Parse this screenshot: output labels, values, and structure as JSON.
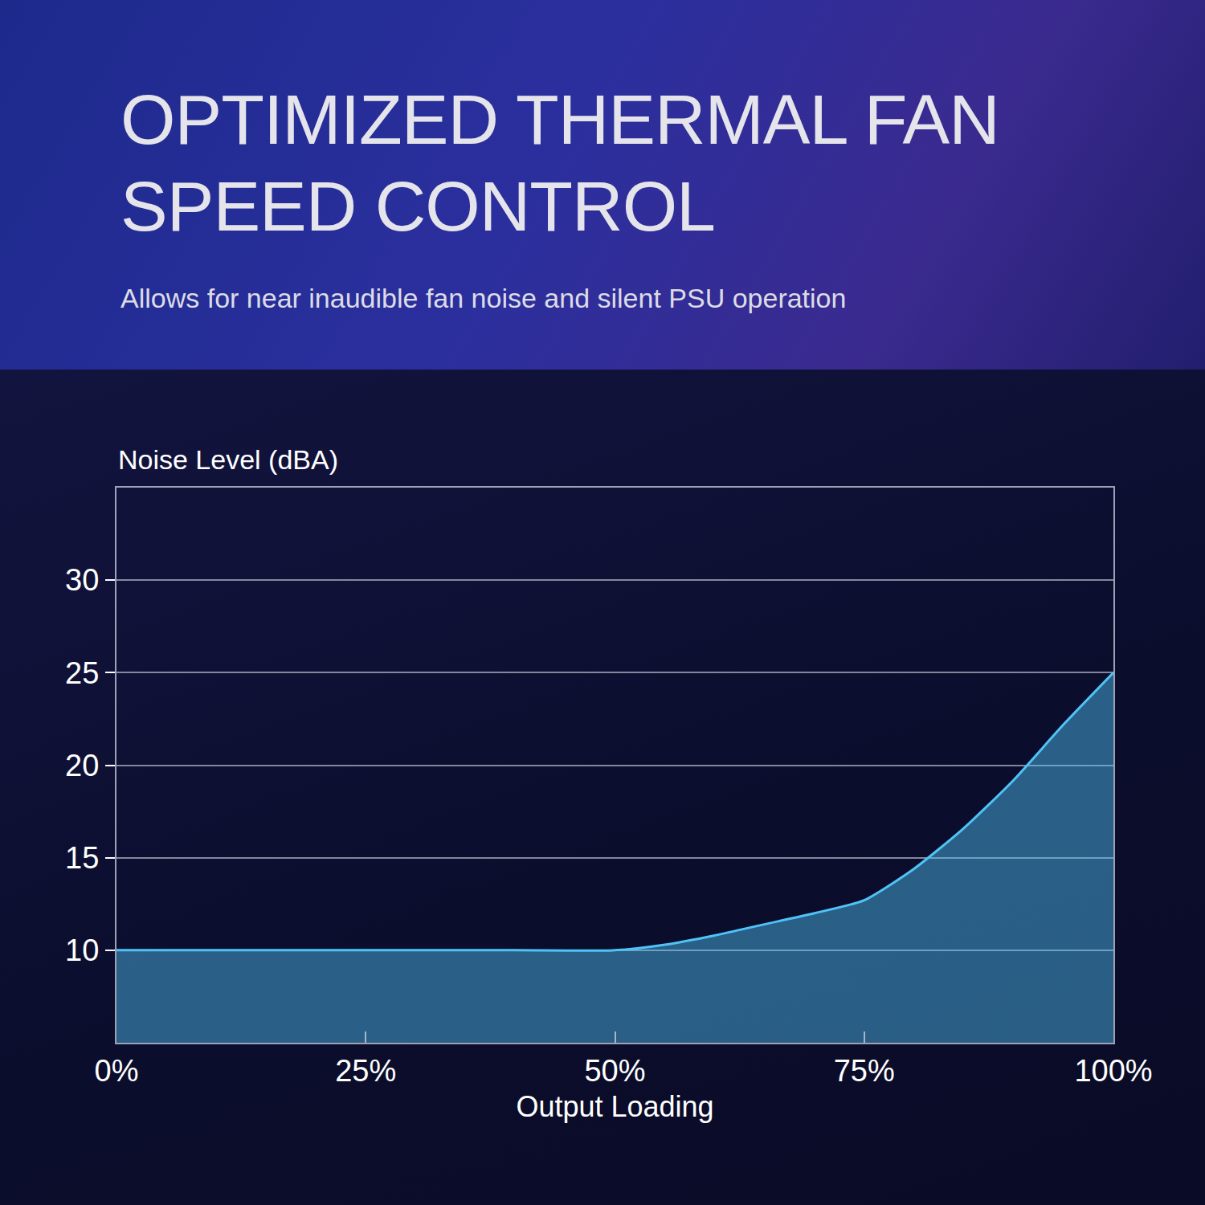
{
  "chart_data": {
    "type": "area",
    "title": "OPTIMIZED THERMAL FAN SPEED CONTROL",
    "subtitle": "Allows for near inaudible fan noise and silent PSU operation",
    "y_label": "Noise Level (dBA)",
    "x_label": "Output Loading",
    "x": [
      0,
      10,
      20,
      30,
      40,
      50,
      55,
      60,
      65,
      70,
      75,
      80,
      85,
      90,
      95,
      100
    ],
    "values": [
      10,
      10,
      10,
      10,
      10,
      10,
      10.3,
      10.8,
      11.4,
      12.0,
      12.7,
      14.4,
      16.6,
      19.2,
      22.2,
      25
    ],
    "color": "#4fc3f7",
    "xlim": [
      0,
      100
    ],
    "xticks": [
      {
        "value": 0,
        "label": "0%"
      },
      {
        "value": 25,
        "label": "25%"
      },
      {
        "value": 50,
        "label": "50%"
      },
      {
        "value": 75,
        "label": "75%"
      },
      {
        "value": 100,
        "label": "100%"
      }
    ],
    "ylim": [
      5,
      35
    ],
    "yticks": [
      10,
      15,
      20,
      25,
      30
    ],
    "grid": true
  }
}
